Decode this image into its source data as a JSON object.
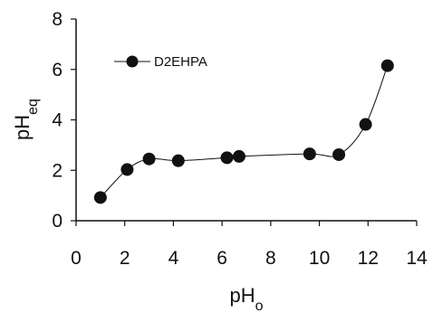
{
  "chart_data": {
    "type": "line",
    "title": "",
    "xlabel": {
      "main": "pH",
      "sub": "o"
    },
    "ylabel": {
      "main": "pH",
      "sub": "eq"
    },
    "xlim": [
      0,
      14
    ],
    "ylim": [
      0,
      8
    ],
    "xticks": [
      "0",
      "2",
      "4",
      "6",
      "8",
      "10",
      "12",
      "14"
    ],
    "yticks": [
      "0",
      "2",
      "4",
      "6",
      "8"
    ],
    "grid": false,
    "legend_position": "top-left",
    "series": [
      {
        "name": "D2EHPA",
        "marker": "filled-circle",
        "color": "#111111",
        "x": [
          1.0,
          2.1,
          3.0,
          4.2,
          6.2,
          6.7,
          9.6,
          10.8,
          11.9,
          12.8
        ],
        "y": [
          0.92,
          2.03,
          2.45,
          2.38,
          2.5,
          2.55,
          2.65,
          2.62,
          3.82,
          6.15
        ]
      }
    ]
  }
}
